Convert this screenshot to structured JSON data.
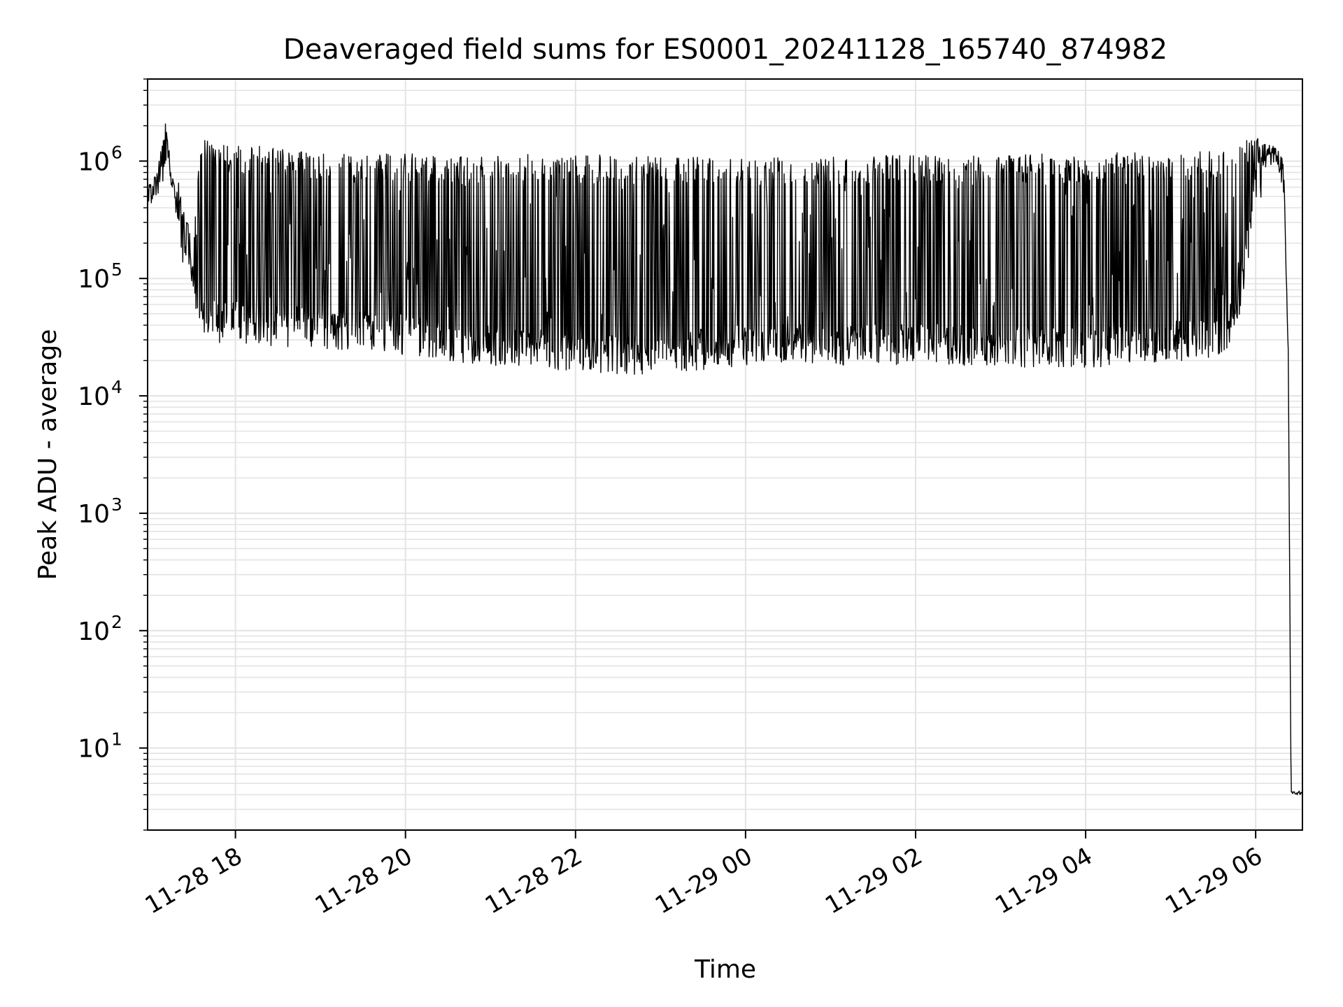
{
  "chart_data": {
    "type": "line",
    "title": "Deaveraged field sums for ES0001_20241128_165740_874982",
    "xlabel": "Time",
    "ylabel": "Peak ADU - average",
    "y_scale": "log",
    "grid": "major and minor",
    "xlim": [
      "2024-11-28 16:58",
      "2024-11-29 06:33"
    ],
    "ylim": [
      2,
      5000000
    ],
    "x_ticks": [
      "2024-11-28 18:00",
      "2024-11-28 20:00",
      "2024-11-28 22:00",
      "2024-11-29 00:00",
      "2024-11-29 02:00",
      "2024-11-29 04:00",
      "2024-11-29 06:00"
    ],
    "x_tick_labels": [
      "11-28 18",
      "11-28 20",
      "11-28 22",
      "11-29 00",
      "11-29 02",
      "11-29 04",
      "11-29 06"
    ],
    "y_ticks": [
      10,
      100,
      1000,
      10000,
      100000,
      1000000
    ],
    "y_tick_labels": [
      {
        "base": "10",
        "exp": "1"
      },
      {
        "base": "10",
        "exp": "2"
      },
      {
        "base": "10",
        "exp": "3"
      },
      {
        "base": "10",
        "exp": "4"
      },
      {
        "base": "10",
        "exp": "5"
      },
      {
        "base": "10",
        "exp": "6"
      }
    ],
    "line_color": "#000000",
    "grid_color": "#e3e3e3",
    "series": [
      {
        "x": [
          "2024-11-28 16:58",
          "2024-11-28 17:05",
          "2024-11-28 17:10",
          "2024-11-28 17:15",
          "2024-11-28 17:20",
          "2024-11-28 17:25",
          "2024-11-28 17:30",
          "2024-11-28 17:35",
          "2024-11-28 17:40",
          "2024-11-28 17:45",
          "2024-11-28 17:50",
          "2024-11-28 18:00",
          "2024-11-28 18:30",
          "2024-11-28 19:00",
          "2024-11-28 19:30",
          "2024-11-28 20:00",
          "2024-11-28 20:30",
          "2024-11-28 21:00",
          "2024-11-28 21:30",
          "2024-11-28 22:00",
          "2024-11-28 22:30",
          "2024-11-28 23:00",
          "2024-11-28 23:30",
          "2024-11-29 00:00",
          "2024-11-29 00:30",
          "2024-11-29 01:00",
          "2024-11-29 01:30",
          "2024-11-29 02:00",
          "2024-11-29 02:30",
          "2024-11-29 03:00",
          "2024-11-29 03:30",
          "2024-11-29 04:00",
          "2024-11-29 04:30",
          "2024-11-29 05:00",
          "2024-11-29 05:30",
          "2024-11-29 05:40",
          "2024-11-29 05:50",
          "2024-11-29 06:00",
          "2024-11-29 06:10",
          "2024-11-29 06:15",
          "2024-11-29 06:20",
          "2024-11-29 06:23",
          "2024-11-29 06:25",
          "2024-11-29 06:33"
        ],
        "low": [
          400000,
          500000,
          1000000,
          600000,
          250000,
          150000,
          80000,
          50000,
          45000,
          42000,
          40000,
          40000,
          38000,
          36000,
          34000,
          32000,
          28000,
          26000,
          24000,
          22000,
          21000,
          22000,
          24000,
          26000,
          27000,
          26000,
          26000,
          27000,
          26000,
          25000,
          25000,
          25000,
          26000,
          28000,
          30000,
          35000,
          80000,
          600000,
          900000,
          1000000,
          500000,
          20000,
          4,
          4
        ],
        "high": [
          600000,
          800000,
          2600000,
          1000000,
          700000,
          400000,
          200000,
          1500000,
          1500000,
          1500000,
          1400000,
          1400000,
          1300000,
          1200000,
          1100000,
          1200000,
          1100000,
          1100000,
          1150000,
          1150000,
          1150000,
          1100000,
          1100000,
          1100000,
          1100000,
          1100000,
          1100000,
          1150000,
          1150000,
          1150000,
          1150000,
          1150000,
          1200000,
          1200000,
          1250000,
          1300000,
          1400000,
          1800000,
          1400000,
          1300000,
          1000000,
          25000,
          4.3,
          4.3
        ]
      }
    ]
  }
}
